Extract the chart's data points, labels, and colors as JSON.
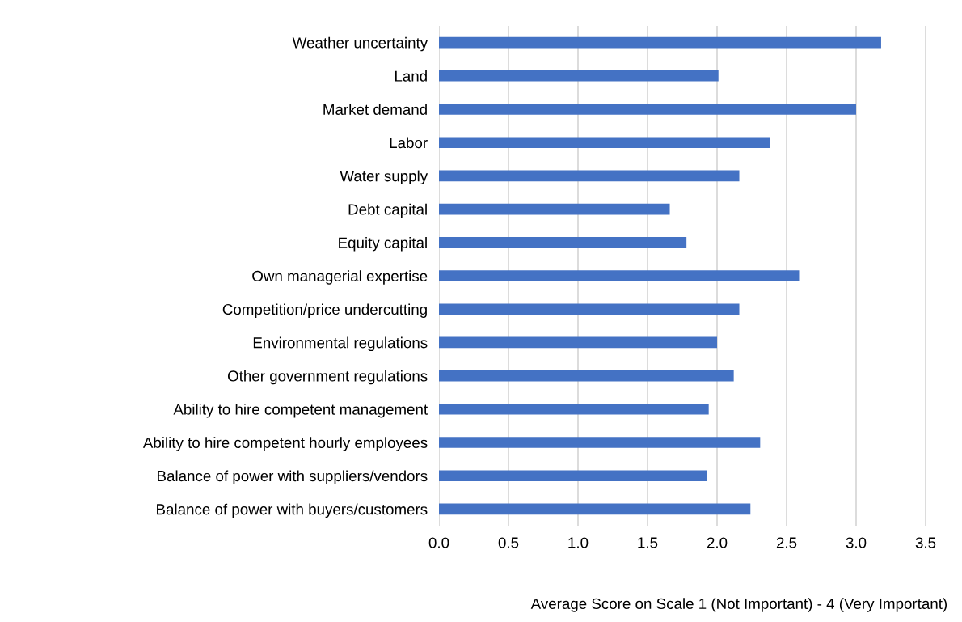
{
  "chart_data": {
    "type": "bar",
    "orientation": "horizontal",
    "xlabel": "Average Score on Scale 1 (Not Important) - 4 (Very Important)",
    "categories": [
      "Weather uncertainty",
      "Land",
      "Market demand",
      "Labor",
      "Water supply",
      "Debt capital",
      "Equity capital",
      "Own managerial expertise",
      "Competition/price undercutting",
      "Environmental regulations",
      "Other government regulations",
      "Ability to hire competent management",
      "Ability to hire competent hourly employees",
      "Balance of power with suppliers/vendors",
      "Balance of power with buyers/customers"
    ],
    "values": [
      3.18,
      2.01,
      3.0,
      2.38,
      2.16,
      1.66,
      1.78,
      2.59,
      2.16,
      2.0,
      2.12,
      1.94,
      2.31,
      1.93,
      2.24
    ],
    "color": "#4472c4",
    "xlim": [
      0,
      3.5
    ],
    "xticks": [
      {
        "value": 0,
        "label": "0.0"
      },
      {
        "value": 0.5,
        "label": "0.5"
      },
      {
        "value": 1,
        "label": "1.0"
      },
      {
        "value": 1.5,
        "label": "1.5"
      },
      {
        "value": 2,
        "label": "2.0"
      },
      {
        "value": 2.5,
        "label": "2.5"
      },
      {
        "value": 3,
        "label": "3.0"
      },
      {
        "value": 3.5,
        "label": "3.5"
      }
    ],
    "grid": "x"
  }
}
